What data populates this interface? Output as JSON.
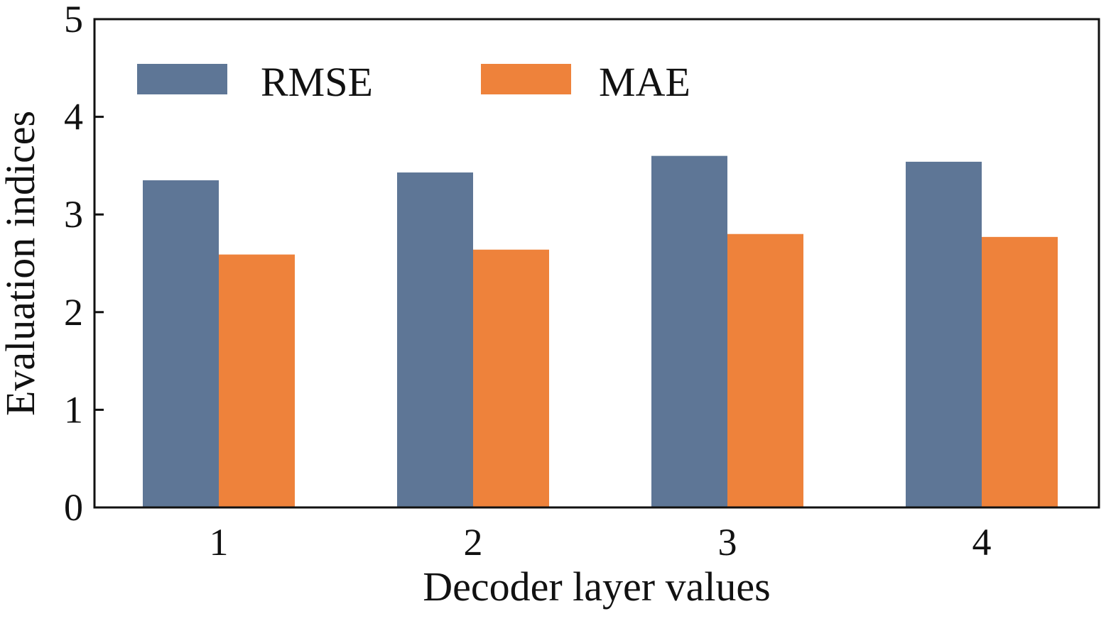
{
  "chart_data": {
    "type": "bar",
    "xlabel": "Decoder layer values",
    "ylabel": "Evaluation indices",
    "categories": [
      "1",
      "2",
      "3",
      "4"
    ],
    "series": [
      {
        "name": "RMSE",
        "values": [
          3.35,
          3.43,
          3.6,
          3.54
        ],
        "color": "#5e7696"
      },
      {
        "name": "MAE",
        "values": [
          2.59,
          2.64,
          2.8,
          2.77
        ],
        "color": "#ee823b"
      }
    ],
    "ylim": [
      0,
      5
    ],
    "yticks": [
      "0",
      "1",
      "2",
      "3",
      "4",
      "5"
    ],
    "grid": false,
    "legend_position": "top-left"
  }
}
